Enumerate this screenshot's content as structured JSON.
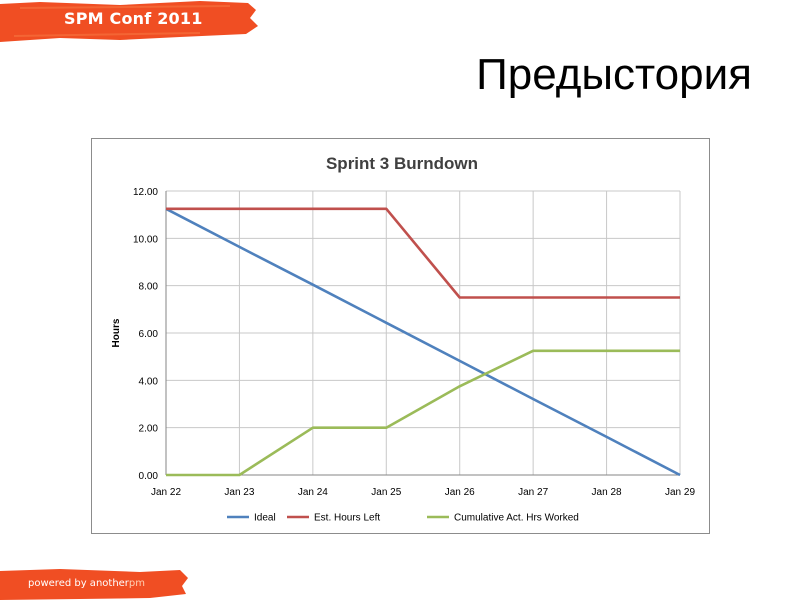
{
  "header": {
    "brand": "SPM Conf 2011",
    "brand_color": "#f04e23"
  },
  "slide": {
    "title": "Предыстория"
  },
  "footer": {
    "text_prefix": "powered by another",
    "text_accent": "pm",
    "color": "#f04e23"
  },
  "chart_data": {
    "type": "line",
    "title": "Sprint 3 Burndown",
    "xlabel": "",
    "ylabel": "Hours",
    "categories": [
      "Jan 22",
      "Jan 23",
      "Jan 24",
      "Jan 25",
      "Jan 26",
      "Jan 27",
      "Jan 28",
      "Jan 29"
    ],
    "ylim": [
      0,
      12
    ],
    "yticks": [
      "0.00",
      "2.00",
      "4.00",
      "6.00",
      "8.00",
      "10.00",
      "12.00"
    ],
    "grid": true,
    "legend": "bottom",
    "series": [
      {
        "name": "Ideal",
        "color": "#4f81bd",
        "values": [
          11.25,
          9.64,
          8.04,
          6.43,
          4.82,
          3.21,
          1.61,
          0.0
        ]
      },
      {
        "name": "Est. Hours Left",
        "color": "#c0504d",
        "values": [
          11.25,
          11.25,
          11.25,
          11.25,
          7.5,
          7.5,
          7.5,
          7.5
        ]
      },
      {
        "name": "Cumulative Act. Hrs Worked",
        "color": "#9bbb59",
        "values": [
          0,
          0,
          2,
          2,
          3.75,
          5.25,
          5.25,
          5.25
        ]
      }
    ]
  }
}
